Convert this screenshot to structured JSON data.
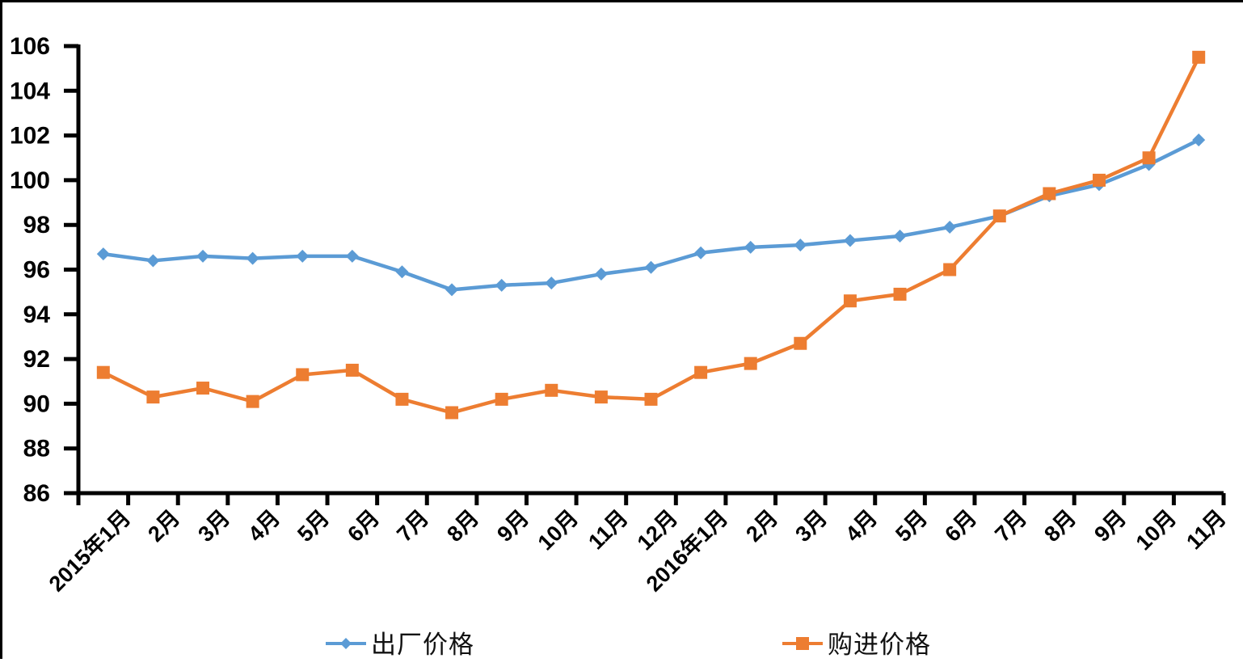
{
  "chart_data": {
    "type": "line",
    "title": "",
    "xlabel": "",
    "ylabel": "",
    "categories": [
      "2015年1月",
      "2月",
      "3月",
      "4月",
      "5月",
      "6月",
      "7月",
      "8月",
      "9月",
      "10月",
      "11月",
      "12月",
      "2016年1月",
      "2月",
      "3月",
      "4月",
      "5月",
      "6月",
      "7月",
      "8月",
      "9月",
      "10月",
      "11月"
    ],
    "series": [
      {
        "name": "出厂价格",
        "marker": "diamond",
        "color": "#5B9BD5",
        "values": [
          96.7,
          96.4,
          96.6,
          96.5,
          96.6,
          96.6,
          95.9,
          95.1,
          95.3,
          95.4,
          95.8,
          96.1,
          96.75,
          97.0,
          97.1,
          97.3,
          97.5,
          97.9,
          98.4,
          99.3,
          99.8,
          100.7,
          101.8
        ]
      },
      {
        "name": "购进价格",
        "marker": "square",
        "color": "#ED7D31",
        "values": [
          91.4,
          90.3,
          90.7,
          90.1,
          91.3,
          91.5,
          90.2,
          89.6,
          90.2,
          90.6,
          90.3,
          90.2,
          91.4,
          91.8,
          92.7,
          94.6,
          94.9,
          96.0,
          98.4,
          99.4,
          100.0,
          101.0,
          105.5
        ]
      }
    ],
    "ylim": [
      86,
      106
    ],
    "ytick_step": 2,
    "yticks": [
      "86",
      "88",
      "90",
      "92",
      "94",
      "96",
      "98",
      "100",
      "102",
      "104",
      "106"
    ],
    "grid": false,
    "legend_position": "bottom",
    "axis_color": "#000000",
    "background_color": "#FFFFFF",
    "border_color": "#000000"
  }
}
